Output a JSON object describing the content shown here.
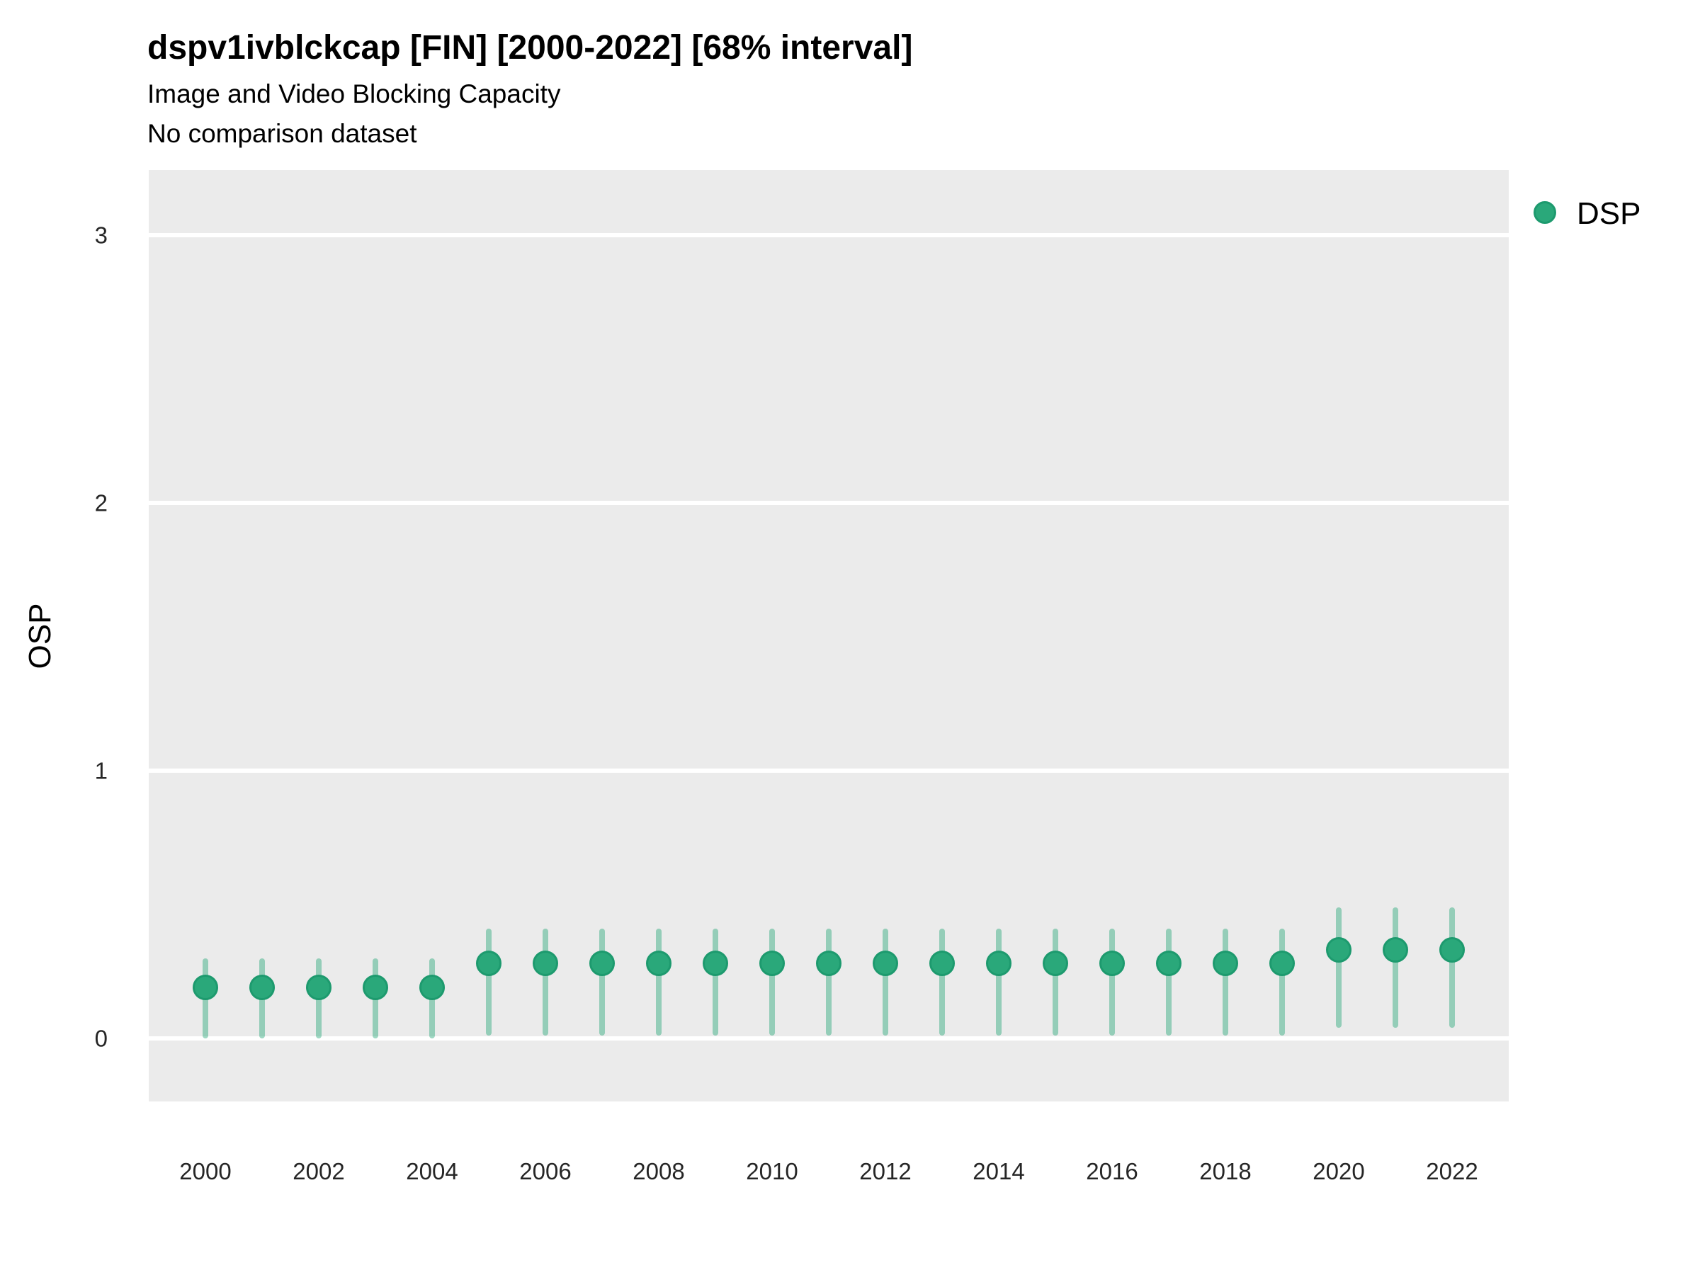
{
  "chart_data": {
    "type": "scatter",
    "style": "pointrange",
    "title": "dspv1ivblckcap [FIN] [2000-2022] [68% interval]",
    "subtitle": "Image and Video Blocking Capacity",
    "note": "No comparison dataset",
    "xlabel": "",
    "ylabel": "OSP",
    "interval": "68%",
    "grid": "major-horizontal",
    "legend_position": "right",
    "legend": {
      "entries": [
        {
          "label": "DSP",
          "color": "#2aa87a"
        }
      ]
    },
    "x_tick_labels": [
      2000,
      2002,
      2004,
      2006,
      2008,
      2010,
      2012,
      2014,
      2016,
      2018,
      2020,
      2022
    ],
    "y_tick_labels": [
      0,
      1,
      2,
      3
    ],
    "xlim": [
      1999,
      2023
    ],
    "ylim": [
      -0.235,
      3.243
    ],
    "series": [
      {
        "name": "DSP",
        "marker_color": "#2aa87a",
        "marker_edge_color": "#1d9a6e",
        "interval_color": "rgba(42,168,122,0.45)",
        "x": [
          2000,
          2001,
          2002,
          2003,
          2004,
          2005,
          2006,
          2007,
          2008,
          2009,
          2010,
          2011,
          2012,
          2013,
          2014,
          2015,
          2016,
          2017,
          2018,
          2019,
          2020,
          2021,
          2022
        ],
        "mid": [
          0.19,
          0.19,
          0.19,
          0.19,
          0.19,
          0.28,
          0.28,
          0.28,
          0.28,
          0.28,
          0.28,
          0.28,
          0.28,
          0.28,
          0.28,
          0.28,
          0.28,
          0.28,
          0.28,
          0.28,
          0.33,
          0.33,
          0.33
        ],
        "lo": [
          0.0,
          0.0,
          0.0,
          0.0,
          0.0,
          0.01,
          0.01,
          0.01,
          0.01,
          0.01,
          0.01,
          0.01,
          0.01,
          0.01,
          0.01,
          0.01,
          0.01,
          0.01,
          0.01,
          0.01,
          0.04,
          0.04,
          0.04
        ],
        "hi": [
          0.3,
          0.3,
          0.3,
          0.3,
          0.3,
          0.41,
          0.41,
          0.41,
          0.41,
          0.41,
          0.41,
          0.41,
          0.41,
          0.41,
          0.41,
          0.41,
          0.41,
          0.41,
          0.41,
          0.41,
          0.49,
          0.49,
          0.49
        ]
      }
    ],
    "colors": {
      "panel_bg": "#ebebeb",
      "gridline": "#ffffff",
      "title_text": "#000000",
      "tick_text": "#262626"
    }
  }
}
